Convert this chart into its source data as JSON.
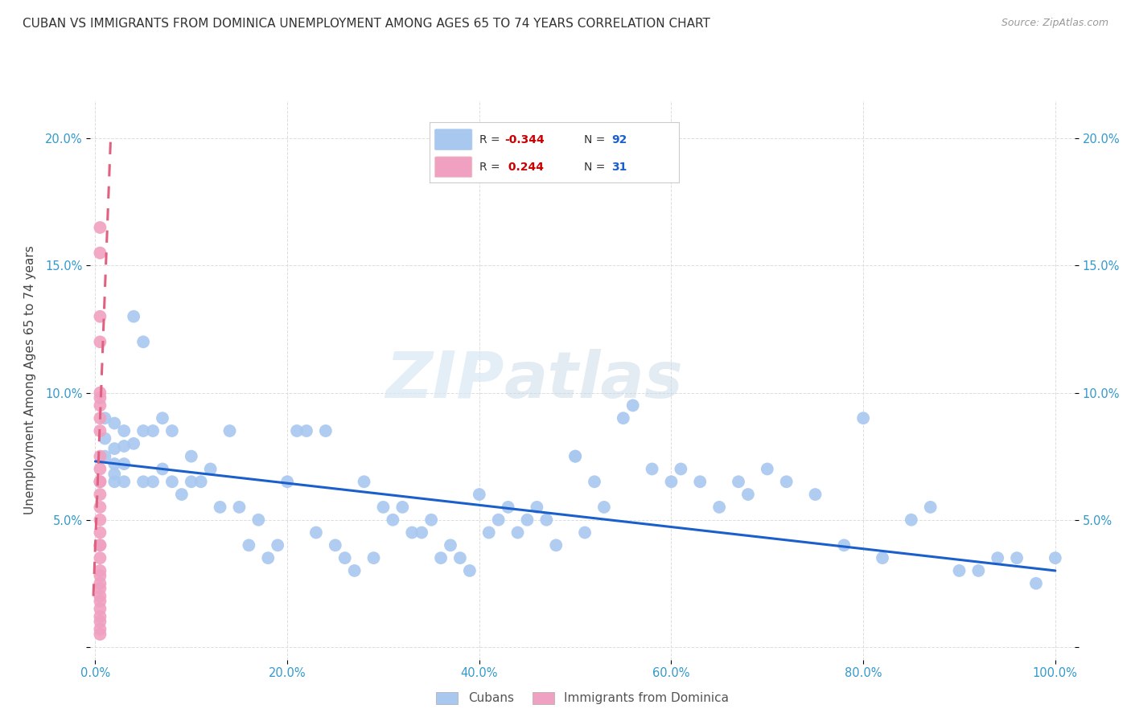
{
  "title": "CUBAN VS IMMIGRANTS FROM DOMINICA UNEMPLOYMENT AMONG AGES 65 TO 74 YEARS CORRELATION CHART",
  "source": "Source: ZipAtlas.com",
  "ylabel": "Unemployment Among Ages 65 to 74 years",
  "xlim": [
    -0.005,
    1.02
  ],
  "ylim": [
    -0.005,
    0.215
  ],
  "xticks": [
    0.0,
    0.2,
    0.4,
    0.6,
    0.8,
    1.0
  ],
  "xtick_labels": [
    "0.0%",
    "20.0%",
    "40.0%",
    "60.0%",
    "80.0%",
    "100.0%"
  ],
  "yticks": [
    0.0,
    0.05,
    0.1,
    0.15,
    0.2
  ],
  "ytick_labels": [
    "",
    "5.0%",
    "10.0%",
    "15.0%",
    "20.0%"
  ],
  "blue_color": "#A8C8F0",
  "pink_color": "#F0A0C0",
  "blue_line_color": "#1A5FCC",
  "pink_line_color": "#E06080",
  "watermark_zip": "ZIP",
  "watermark_atlas": "atlas",
  "cubans_x": [
    0.01,
    0.01,
    0.01,
    0.02,
    0.02,
    0.02,
    0.02,
    0.02,
    0.03,
    0.03,
    0.03,
    0.03,
    0.04,
    0.04,
    0.05,
    0.05,
    0.05,
    0.06,
    0.06,
    0.07,
    0.07,
    0.08,
    0.08,
    0.09,
    0.1,
    0.1,
    0.11,
    0.12,
    0.13,
    0.14,
    0.15,
    0.16,
    0.17,
    0.18,
    0.19,
    0.2,
    0.21,
    0.22,
    0.23,
    0.24,
    0.25,
    0.26,
    0.27,
    0.28,
    0.29,
    0.3,
    0.31,
    0.32,
    0.33,
    0.34,
    0.35,
    0.36,
    0.37,
    0.38,
    0.39,
    0.4,
    0.41,
    0.42,
    0.43,
    0.44,
    0.45,
    0.46,
    0.47,
    0.48,
    0.5,
    0.51,
    0.53,
    0.55,
    0.56,
    0.58,
    0.6,
    0.61,
    0.63,
    0.65,
    0.67,
    0.68,
    0.7,
    0.72,
    0.75,
    0.78,
    0.8,
    0.82,
    0.85,
    0.87,
    0.9,
    0.92,
    0.94,
    0.96,
    0.98,
    1.0,
    0.5,
    0.52
  ],
  "cubans_y": [
    0.09,
    0.082,
    0.075,
    0.088,
    0.078,
    0.072,
    0.068,
    0.065,
    0.085,
    0.079,
    0.072,
    0.065,
    0.13,
    0.08,
    0.12,
    0.085,
    0.065,
    0.085,
    0.065,
    0.09,
    0.07,
    0.085,
    0.065,
    0.06,
    0.075,
    0.065,
    0.065,
    0.07,
    0.055,
    0.085,
    0.055,
    0.04,
    0.05,
    0.035,
    0.04,
    0.065,
    0.085,
    0.085,
    0.045,
    0.085,
    0.04,
    0.035,
    0.03,
    0.065,
    0.035,
    0.055,
    0.05,
    0.055,
    0.045,
    0.045,
    0.05,
    0.035,
    0.04,
    0.035,
    0.03,
    0.06,
    0.045,
    0.05,
    0.055,
    0.045,
    0.05,
    0.055,
    0.05,
    0.04,
    0.075,
    0.045,
    0.055,
    0.09,
    0.095,
    0.07,
    0.065,
    0.07,
    0.065,
    0.055,
    0.065,
    0.06,
    0.07,
    0.065,
    0.06,
    0.04,
    0.09,
    0.035,
    0.05,
    0.055,
    0.03,
    0.03,
    0.035,
    0.035,
    0.025,
    0.035,
    0.075,
    0.065
  ],
  "dominica_x": [
    0.005,
    0.005,
    0.005,
    0.005,
    0.005,
    0.005,
    0.005,
    0.005,
    0.005,
    0.005,
    0.005,
    0.005,
    0.005,
    0.005,
    0.005,
    0.005,
    0.005,
    0.005,
    0.005,
    0.005,
    0.005,
    0.005,
    0.005,
    0.005,
    0.005,
    0.005,
    0.005,
    0.005,
    0.005,
    0.005,
    0.005
  ],
  "dominica_y": [
    0.165,
    0.155,
    0.13,
    0.12,
    0.1,
    0.098,
    0.095,
    0.09,
    0.085,
    0.075,
    0.07,
    0.065,
    0.065,
    0.06,
    0.055,
    0.05,
    0.045,
    0.04,
    0.04,
    0.035,
    0.03,
    0.028,
    0.025,
    0.023,
    0.02,
    0.018,
    0.015,
    0.012,
    0.01,
    0.007,
    0.005
  ],
  "blue_trend_x0": 0.0,
  "blue_trend_x1": 1.0,
  "blue_trend_y0": 0.073,
  "blue_trend_y1": 0.03,
  "pink_trend_x0": -0.002,
  "pink_trend_x1": 0.016,
  "pink_trend_y0": 0.02,
  "pink_trend_y1": 0.2
}
